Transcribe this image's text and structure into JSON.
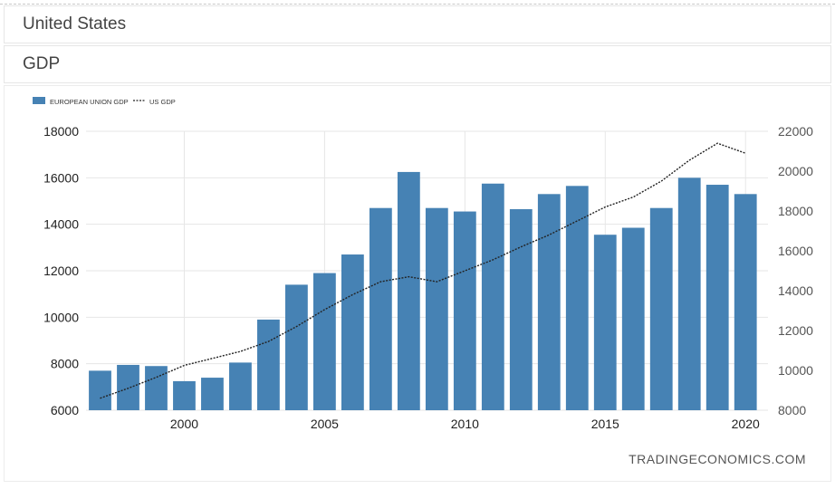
{
  "header": {
    "country": "United States",
    "indicator": "GDP"
  },
  "watermark": "TRADINGECONOMICS.COM",
  "colors": {
    "bar": "#4682b4",
    "line": "#222222",
    "grid": "#e6e6e6",
    "text": "#222222"
  },
  "chart_data": {
    "type": "bar",
    "legend_position": "top-left",
    "grid": true,
    "x": [
      1997,
      1998,
      1999,
      2000,
      2001,
      2002,
      2003,
      2004,
      2005,
      2006,
      2007,
      2008,
      2009,
      2010,
      2011,
      2012,
      2013,
      2014,
      2015,
      2016,
      2017,
      2018,
      2019,
      2020
    ],
    "xticks": [
      "2000",
      "2005",
      "2010",
      "2015",
      "2020"
    ],
    "series": [
      {
        "name": "EUROPEAN UNION GDP",
        "type": "bar",
        "axis": "left",
        "values": [
          7700,
          7950,
          7900,
          7250,
          7400,
          8050,
          9900,
          11400,
          11900,
          12700,
          14700,
          16250,
          14700,
          14550,
          15750,
          14650,
          15300,
          15650,
          13550,
          13850,
          14700,
          16000,
          15700,
          15300
        ]
      },
      {
        "name": "US GDP",
        "type": "line",
        "axis": "right",
        "values": [
          8600,
          9100,
          9650,
          10250,
          10600,
          10950,
          11450,
          12200,
          13050,
          13800,
          14450,
          14700,
          14450,
          15000,
          15550,
          16200,
          16800,
          17500,
          18200,
          18700,
          19500,
          20550,
          21400,
          20900
        ]
      }
    ],
    "y_left": {
      "ylim": [
        6000,
        18000
      ],
      "ticks": [
        "6000",
        "8000",
        "10000",
        "12000",
        "14000",
        "16000",
        "18000"
      ]
    },
    "y_right": {
      "ylim": [
        8000,
        22000
      ],
      "ticks": [
        "8000",
        "10000",
        "12000",
        "14000",
        "16000",
        "18000",
        "20000",
        "22000"
      ]
    }
  }
}
